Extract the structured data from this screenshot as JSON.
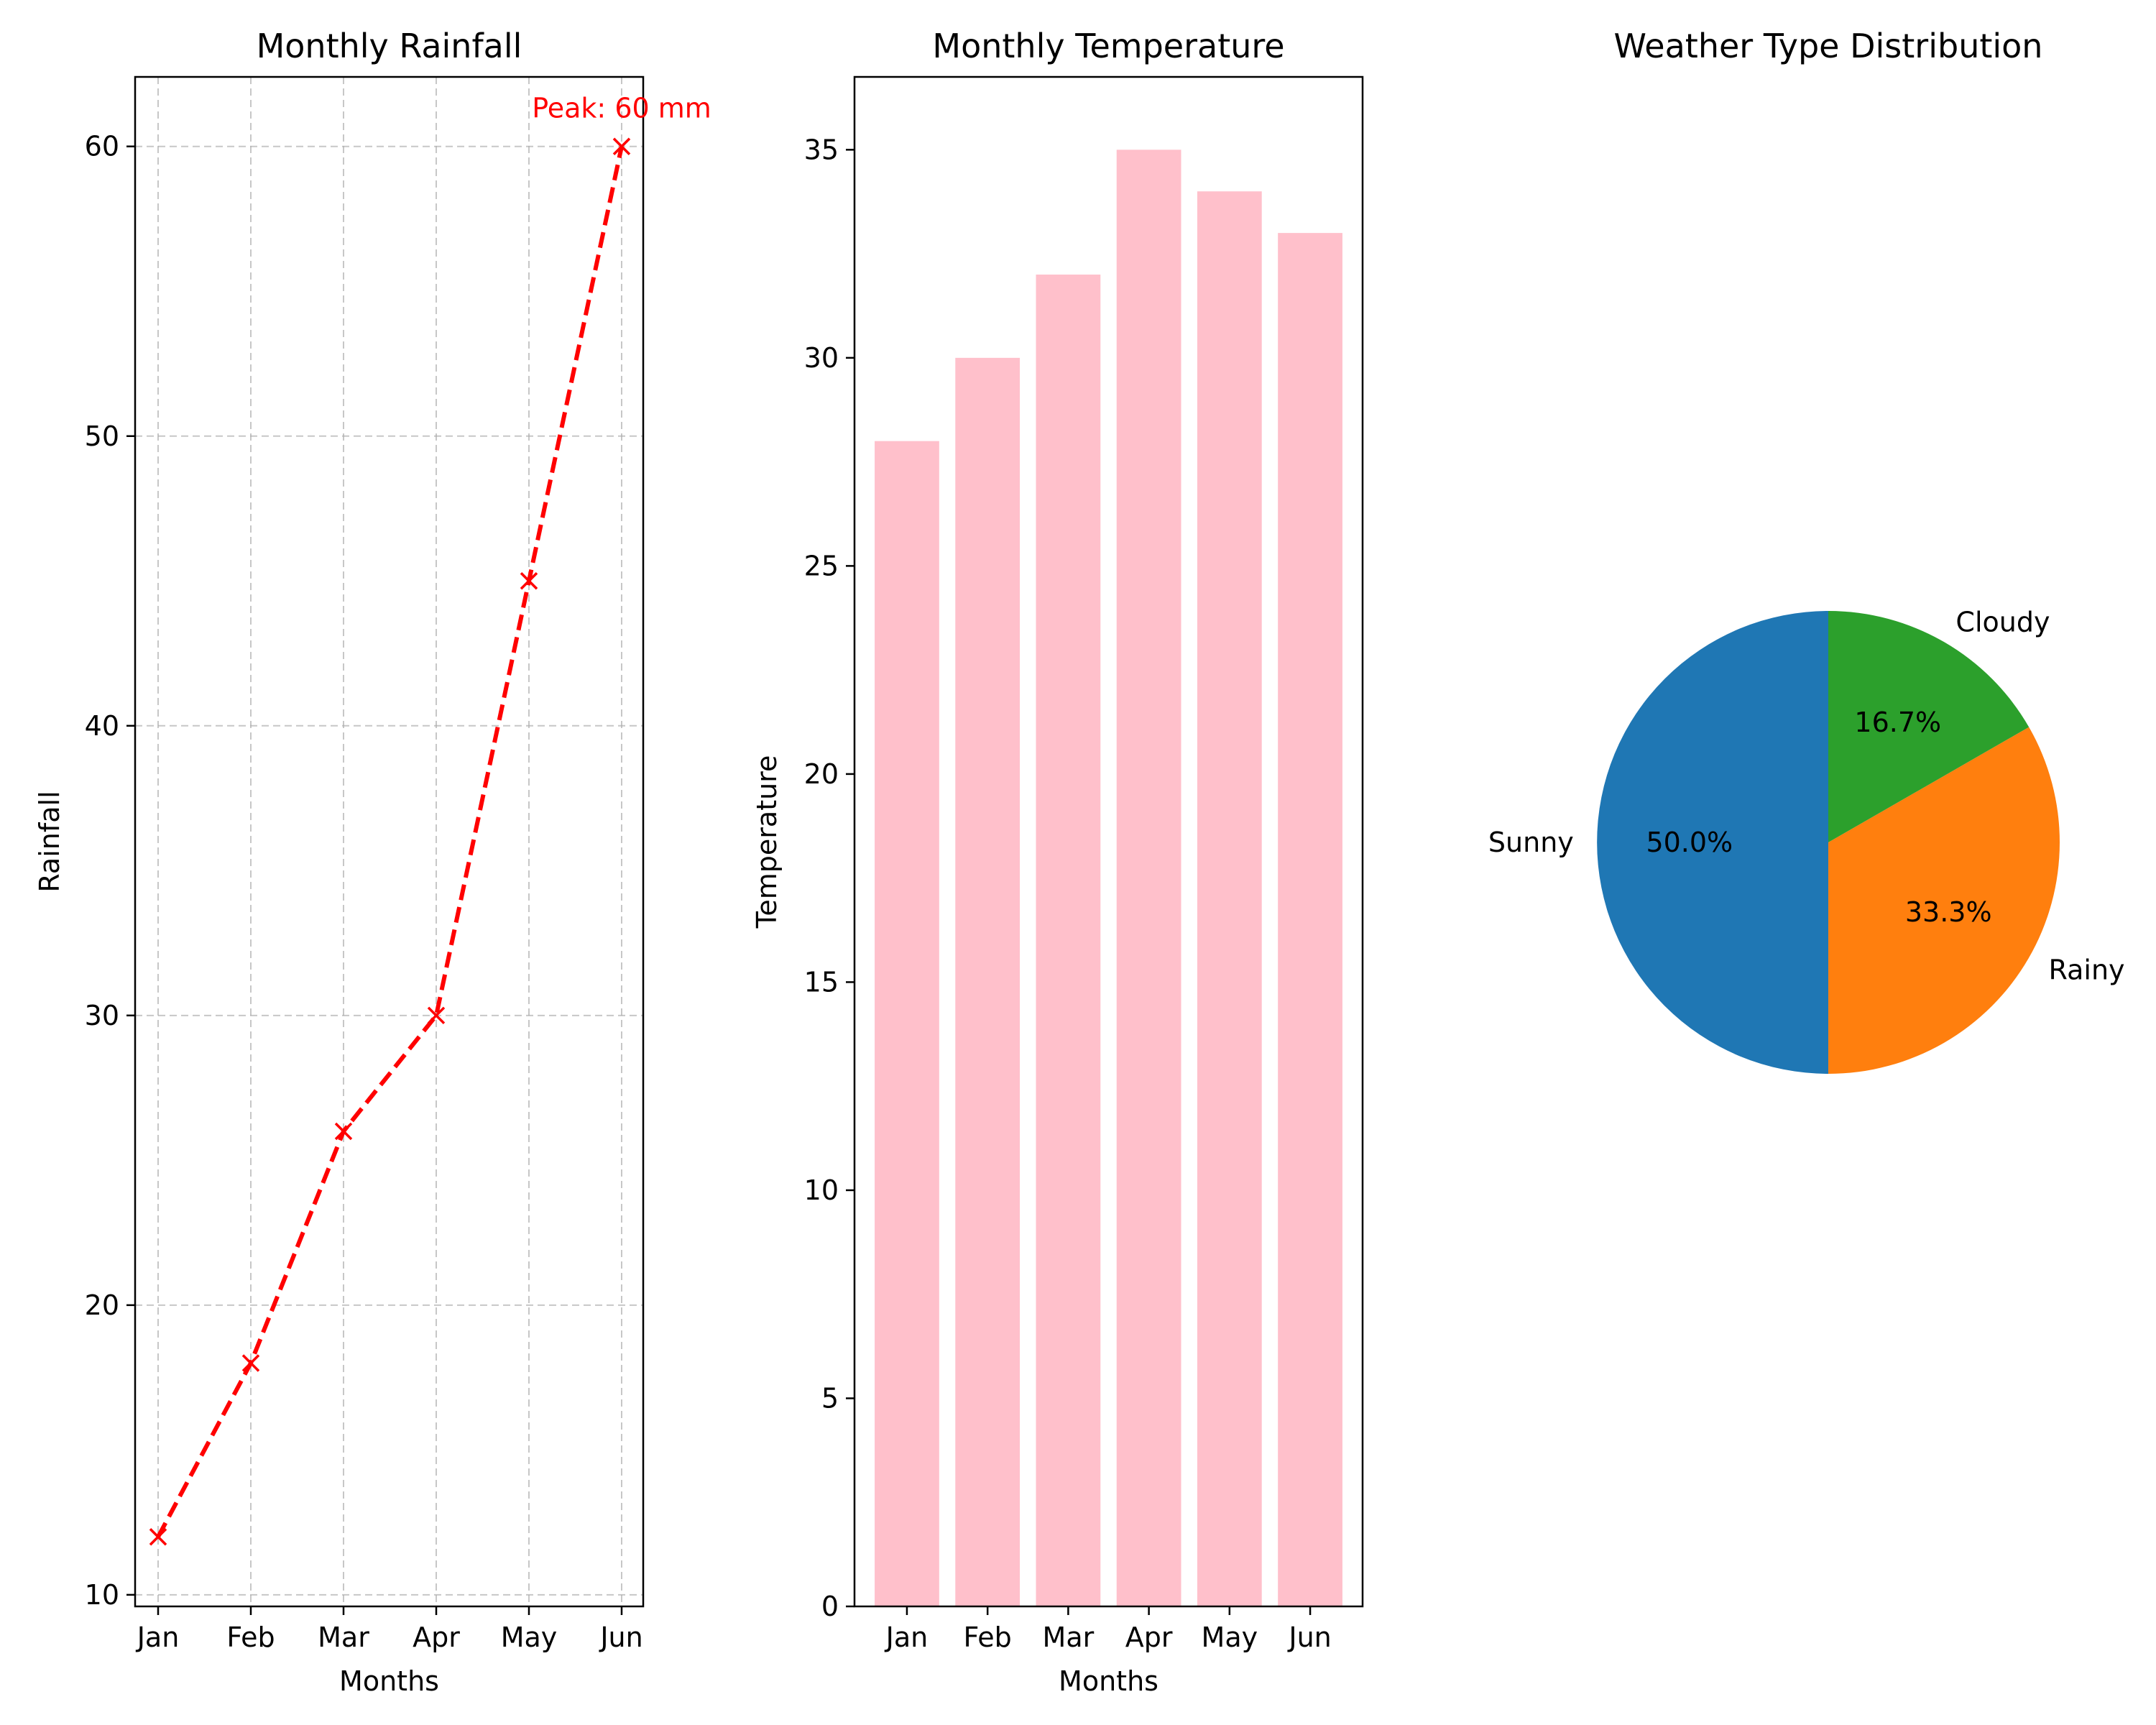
{
  "chart_data": [
    {
      "type": "line",
      "title": "Monthly Rainfall",
      "xlabel": "Months",
      "ylabel": "Rainfall",
      "categories": [
        "Jan",
        "Feb",
        "Mar",
        "Apr",
        "May",
        "Jun"
      ],
      "values": [
        12,
        18,
        26,
        30,
        45,
        60
      ],
      "ylim": [
        9.6,
        62.4
      ],
      "yticks": [
        10,
        20,
        30,
        40,
        50,
        60
      ],
      "grid": true,
      "line_style": "dashed",
      "marker": "x",
      "color": "#ff0000",
      "annotation": {
        "text": "Peak: 60 mm",
        "x": "Jun",
        "y": 60,
        "color": "#ff0000"
      }
    },
    {
      "type": "bar",
      "title": "Monthly Temperature",
      "xlabel": "Months",
      "ylabel": "Temperature",
      "categories": [
        "Jan",
        "Feb",
        "Mar",
        "Apr",
        "May",
        "Jun"
      ],
      "values": [
        28,
        30,
        32,
        35,
        34,
        33
      ],
      "ylim": [
        0,
        36.75
      ],
      "yticks": [
        0,
        5,
        10,
        15,
        20,
        25,
        30,
        35
      ],
      "grid": false,
      "color": "#ffc0cb"
    },
    {
      "type": "pie",
      "title": "Weather Type Distribution",
      "labels": [
        "Sunny",
        "Rainy",
        "Cloudy"
      ],
      "values": [
        50.0,
        33.3,
        16.7
      ],
      "pct_labels": [
        "50.0%",
        "33.3%",
        "16.7%"
      ],
      "colors": [
        "#1f77b4",
        "#ff7f0e",
        "#2ca02c"
      ],
      "start_angle": 90
    }
  ]
}
